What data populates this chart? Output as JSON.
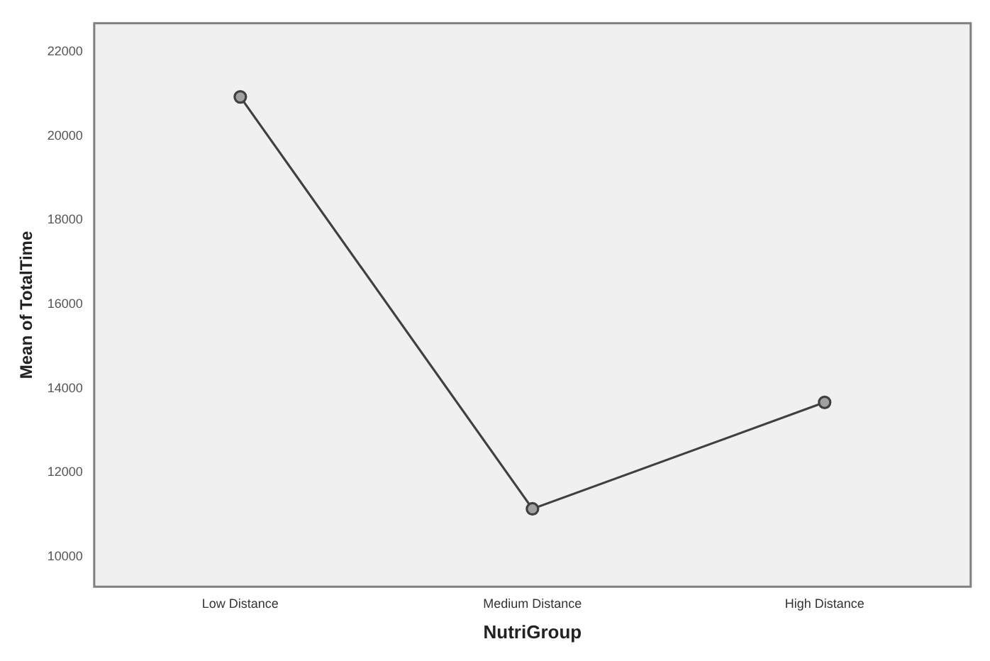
{
  "chart_data": {
    "type": "line",
    "xlabel": "NutriGroup",
    "ylabel": "Mean of TotalTime",
    "categories": [
      "Low Distance",
      "Medium Distance",
      "High Distance"
    ],
    "series": [
      {
        "color": "#404040",
        "values": [
          20930,
          11140,
          13670
        ]
      }
    ],
    "ylim": [
      9290,
      22680
    ],
    "yticks": [
      10000,
      12000,
      14000,
      16000,
      18000,
      20000,
      22000
    ],
    "grid": false,
    "legend": false,
    "marker": "circle",
    "line_style": "solid"
  }
}
